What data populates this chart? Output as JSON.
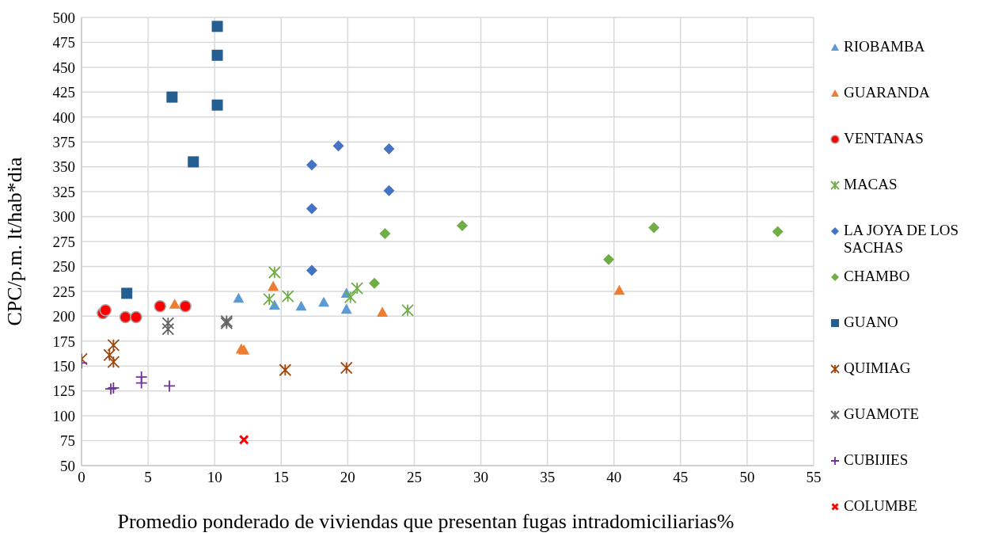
{
  "chart_data": {
    "type": "scatter",
    "xlabel": "Promedio ponderado de viviendas que presentan fugas intradomiciliarias%",
    "ylabel": "CPC/p.m.  lt/hab*dia",
    "xlim": [
      0,
      55
    ],
    "xticks": [
      0,
      5,
      10,
      15,
      20,
      25,
      30,
      35,
      40,
      45,
      50,
      55
    ],
    "ylim": [
      50,
      500
    ],
    "yticks": [
      50,
      75,
      100,
      125,
      150,
      175,
      200,
      225,
      250,
      275,
      300,
      325,
      350,
      375,
      400,
      425,
      450,
      475,
      500
    ],
    "grid": true,
    "legend": "right",
    "series": [
      {
        "name": "RIOBAMBA",
        "color": "#5b9bd5",
        "marker": "triangle",
        "x": [
          11.8,
          14.5,
          16.5,
          18.2,
          19.9,
          19.9
        ],
        "values": [
          218,
          211,
          210,
          214,
          223,
          207
        ]
      },
      {
        "name": "GUARANDA",
        "color": "#ed7d31",
        "marker": "triangle",
        "x": [
          7.0,
          12.0,
          12.2,
          14.4,
          22.6,
          40.4
        ],
        "values": [
          212,
          167,
          166,
          230,
          204,
          226
        ]
      },
      {
        "name": "VENTANAS",
        "color": "#ff0000",
        "marker": "circle",
        "x": [
          1.6,
          1.8,
          3.3,
          4.1,
          5.9,
          7.8
        ],
        "values": [
          203,
          206,
          199,
          199,
          210,
          210
        ]
      },
      {
        "name": "MACAS",
        "color": "#70ad47",
        "marker": "cross",
        "x": [
          14.1,
          14.5,
          15.5,
          20.2,
          20.7,
          24.5
        ],
        "values": [
          217,
          244,
          220,
          219,
          228,
          206
        ]
      },
      {
        "name": " LA JOYA DE LOS SACHAS",
        "color": "#4472c4",
        "marker": "diamond",
        "x": [
          17.3,
          17.3,
          17.3,
          19.3,
          23.1,
          23.1
        ],
        "values": [
          352,
          308,
          246,
          371,
          368,
          326
        ]
      },
      {
        "name": "CHAMBO",
        "color": "#70ad47",
        "marker": "diamond",
        "x": [
          22.0,
          22.8,
          28.6,
          39.6,
          43.0,
          52.3
        ],
        "values": [
          233,
          283,
          291,
          257,
          289,
          285
        ]
      },
      {
        "name": "GUANO",
        "color": "#255e91",
        "marker": "square",
        "x": [
          3.4,
          6.8,
          8.4,
          10.2,
          10.2,
          10.2
        ],
        "values": [
          223,
          420,
          355,
          491,
          462,
          412
        ]
      },
      {
        "name": "QUIMIAG",
        "color": "#9e480e",
        "marker": "cross",
        "x": [
          0.0,
          2.1,
          2.4,
          2.4,
          15.3,
          19.9
        ],
        "values": [
          157,
          161,
          171,
          154,
          146,
          148
        ]
      },
      {
        "name": "GUAMOTE",
        "color": "#636363",
        "marker": "cross",
        "x": [
          6.5,
          6.5,
          10.9,
          10.9
        ],
        "values": [
          193,
          187,
          195,
          193
        ]
      },
      {
        "name": "CUBIJIES",
        "color": "#7030a0",
        "marker": "plus",
        "x": [
          0.0,
          2.2,
          2.4,
          4.5,
          4.5,
          6.6
        ],
        "values": [
          153,
          127,
          128,
          139,
          133,
          130
        ]
      },
      {
        "name": "COLUMBE",
        "color": "#ff0000",
        "marker": "x",
        "x": [
          12.2
        ],
        "values": [
          76
        ]
      }
    ]
  }
}
